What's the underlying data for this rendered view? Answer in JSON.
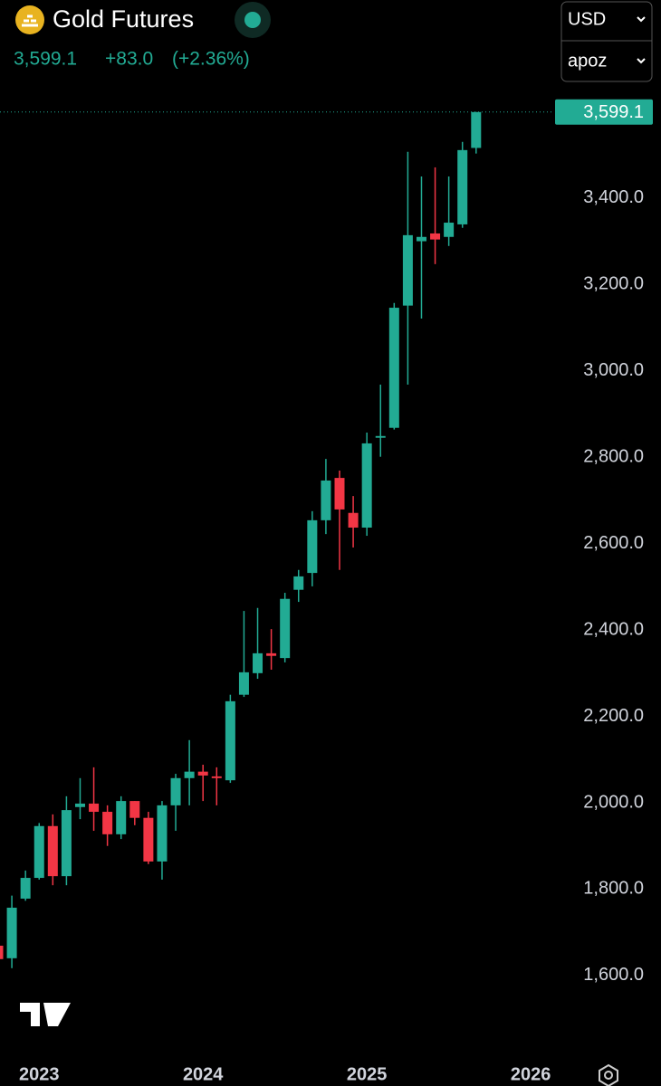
{
  "header": {
    "title": "Gold Futures",
    "price": "3,599.1",
    "change": "+83.0",
    "change_pct": "(+2.36%)"
  },
  "controls": {
    "currency": "USD",
    "unit": "apoz"
  },
  "chart_data": {
    "type": "candlestick",
    "categories": [
      null,
      null,
      null,
      "2023",
      null,
      null,
      null,
      null,
      null,
      null,
      null,
      null,
      null,
      null,
      null,
      "2024",
      null,
      null,
      null,
      null,
      null,
      null,
      null,
      null,
      null,
      null,
      null,
      "2025",
      null,
      null,
      null,
      null,
      null,
      null,
      null,
      null,
      null,
      null,
      null,
      "2026"
    ],
    "open": [
      1669,
      1640,
      1778,
      1826,
      1946,
      1830,
      1990,
      1998,
      1979,
      1927,
      2004,
      1965,
      1864,
      1994,
      2057,
      2072,
      2061,
      2052,
      2250,
      2300,
      2346,
      2335,
      2493,
      2532,
      2654,
      2752,
      2671,
      2637,
      2845,
      2868,
      3151,
      3300,
      3318,
      3310,
      3339,
      3516,
      null,
      null,
      null,
      null
    ],
    "high": [
      1679,
      1785,
      1843,
      1953,
      1973,
      2015,
      2057,
      2082,
      1994,
      2015,
      2004,
      1979,
      2004,
      2067,
      2145,
      2088,
      2082,
      2250,
      2444,
      2451,
      2402,
      2486,
      2539,
      2675,
      2796,
      2769,
      2710,
      2857,
      2968,
      3157,
      3507,
      3450,
      3471,
      3450,
      3530,
      3599.1,
      null,
      null,
      null,
      null
    ],
    "low": [
      1627,
      1617,
      1773,
      1822,
      1809,
      1809,
      1962,
      1935,
      1900,
      1916,
      1948,
      1858,
      1822,
      1935,
      1994,
      2004,
      1994,
      2046,
      2245,
      2287,
      2308,
      2325,
      2465,
      2501,
      2622,
      2539,
      2591,
      2618,
      2801,
      2864,
      2968,
      3121,
      3247,
      3289,
      3331,
      3503,
      null,
      null,
      null,
      null
    ],
    "close": [
      1638,
      1757,
      1826,
      1946,
      1830,
      1983,
      1998,
      1979,
      1927,
      2004,
      1965,
      1864,
      1994,
      2057,
      2072,
      2063,
      2057,
      2235,
      2302,
      2346,
      2340,
      2472,
      2524,
      2654,
      2746,
      2679,
      2637,
      2832,
      2849,
      3146,
      3314,
      3310,
      3304,
      3343,
      3511,
      3599.1,
      null,
      null,
      null,
      null
    ],
    "up_color": "#22ab94",
    "down_color": "#f23645",
    "ylim": [
      1428,
      3628
    ],
    "yticks": [
      {
        "value": 1600,
        "label": "1,600.0"
      },
      {
        "value": 1800,
        "label": "1,800.0"
      },
      {
        "value": 2000,
        "label": "2,000.0"
      },
      {
        "value": 2200,
        "label": "2,200.0"
      },
      {
        "value": 2400,
        "label": "2,400.0"
      },
      {
        "value": 2600,
        "label": "2,600.0"
      },
      {
        "value": 2800,
        "label": "2,800.0"
      },
      {
        "value": 3000,
        "label": "3,000.0"
      },
      {
        "value": 3200,
        "label": "3,200.0"
      },
      {
        "value": 3400,
        "label": "3,400.0"
      }
    ],
    "grid": false,
    "last_price": {
      "value": 3599.1,
      "label": "3,599.1"
    }
  }
}
